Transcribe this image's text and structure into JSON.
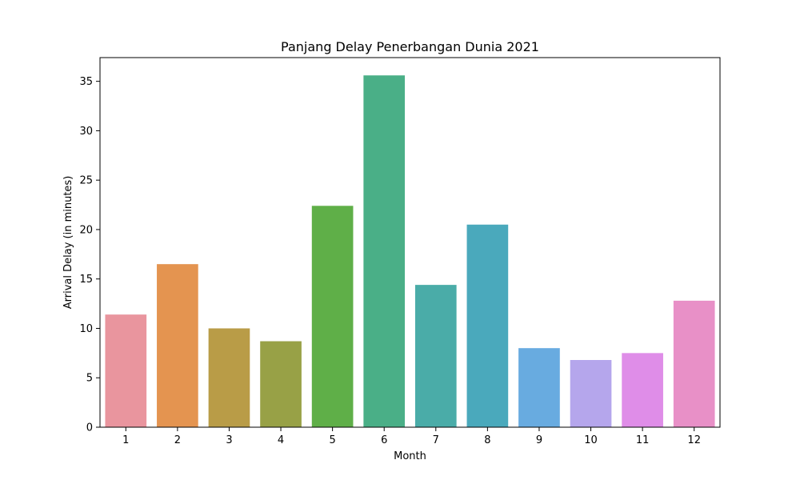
{
  "chart_data": {
    "type": "bar",
    "title": "Panjang Delay Penerbangan Dunia 2021",
    "xlabel": "Month",
    "ylabel": "Arrival Delay (in minutes)",
    "categories": [
      "1",
      "2",
      "3",
      "4",
      "5",
      "6",
      "7",
      "8",
      "9",
      "10",
      "11",
      "12"
    ],
    "values": [
      11.4,
      16.5,
      10.0,
      8.7,
      22.4,
      35.6,
      14.4,
      20.5,
      8.0,
      6.8,
      7.5,
      12.8
    ],
    "colors": [
      "#e9959e",
      "#e49450",
      "#b99c47",
      "#98a146",
      "#5faf48",
      "#4aaf87",
      "#4aaca8",
      "#4aa9bc",
      "#68abe0",
      "#b5a6ec",
      "#df8de8",
      "#e890c7"
    ],
    "yticks": [
      0,
      5,
      10,
      15,
      20,
      25,
      30,
      35
    ],
    "ylim": [
      0,
      37.4
    ],
    "grid": false,
    "legend": "none"
  }
}
